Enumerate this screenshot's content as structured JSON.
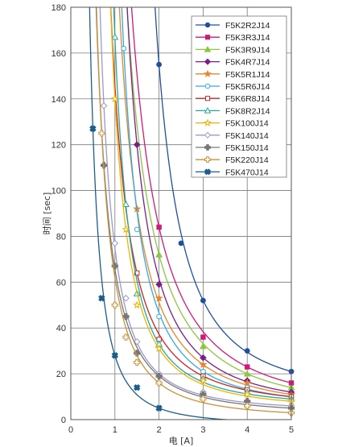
{
  "chart_data": {
    "type": "line",
    "title": "",
    "xlabel": "电 [A]",
    "ylabel": "时间 [sec]",
    "xlim": [
      0,
      5
    ],
    "ylim": [
      0,
      180
    ],
    "xticks": [
      "0",
      "1",
      "2",
      "3",
      "4",
      "5"
    ],
    "yticks": [
      "0",
      "20",
      "40",
      "60",
      "80",
      "100",
      "120",
      "140",
      "160",
      "180"
    ],
    "grid": true,
    "legend_position": "top-right",
    "series": [
      {
        "name": "F5K2R2J14",
        "color": "#1f4fa0",
        "marker": "circle-filled",
        "x": [
          2.0,
          2.5,
          3.0,
          4.0,
          5.0
        ],
        "y": [
          155,
          77,
          52,
          30,
          21
        ]
      },
      {
        "name": "F5K3R3J14",
        "color": "#d0197a",
        "marker": "square-filled",
        "x": [
          2.0,
          3.0,
          4.0,
          5.0
        ],
        "y": [
          84,
          36,
          23,
          16
        ]
      },
      {
        "name": "F5K3R9J14",
        "color": "#8dc63f",
        "marker": "triangle-filled",
        "x": [
          2.0,
          3.0,
          4.0,
          5.0
        ],
        "y": [
          72,
          32,
          20,
          14
        ]
      },
      {
        "name": "F5K4R7J14",
        "color": "#7a1f86",
        "marker": "diamond-filled",
        "x": [
          1.5,
          2.0,
          3.0,
          4.0,
          5.0
        ],
        "y": [
          120,
          59,
          27,
          17,
          12
        ]
      },
      {
        "name": "F5K5R1J14",
        "color": "#e8852b",
        "marker": "star-filled",
        "x": [
          1.5,
          2.0,
          3.0,
          4.0,
          5.0
        ],
        "y": [
          92,
          53,
          24,
          16,
          11
        ]
      },
      {
        "name": "F5K5R6J14",
        "color": "#33aadd",
        "marker": "circle-open",
        "x": [
          1.2,
          1.5,
          2.0,
          3.0,
          4.0,
          5.0
        ],
        "y": [
          162,
          83,
          45,
          21,
          14,
          10
        ]
      },
      {
        "name": "F5K6R8J14",
        "color": "#cc2222",
        "marker": "square-open",
        "x": [
          1.5,
          2.0,
          3.0,
          4.0,
          5.0
        ],
        "y": [
          64,
          35,
          19,
          13,
          10
        ]
      },
      {
        "name": "F5K8R2J14",
        "color": "#22aa99",
        "marker": "triangle-open",
        "x": [
          1.0,
          1.25,
          1.5,
          2.0,
          3.0,
          4.0,
          5.0
        ],
        "y": [
          167,
          94,
          55,
          33,
          18,
          12,
          9
        ]
      },
      {
        "name": "F5K100J14",
        "color": "#f0b400",
        "marker": "star-open",
        "x": [
          1.0,
          1.25,
          1.5,
          2.0,
          3.0,
          4.0,
          5.0
        ],
        "y": [
          140,
          83,
          50,
          31,
          17,
          11,
          8
        ]
      },
      {
        "name": "F5K140J14",
        "color": "#9999cc",
        "marker": "diamond-open",
        "x": [
          0.75,
          1.0,
          1.25,
          1.5,
          2.0,
          3.0,
          4.0,
          5.0
        ],
        "y": [
          137,
          77,
          53,
          34,
          20,
          12,
          8,
          6
        ]
      },
      {
        "name": "F5K150J14",
        "color": "#777777",
        "marker": "cross-filled",
        "x": [
          0.75,
          1.0,
          1.25,
          1.5,
          2.0,
          3.0,
          4.0,
          5.0
        ],
        "y": [
          111,
          67,
          45,
          29,
          19,
          11,
          8,
          5
        ]
      },
      {
        "name": "F5K220J14",
        "color": "#c8923a",
        "marker": "cross-open",
        "x": [
          0.7,
          1.0,
          1.25,
          1.5,
          2.0,
          3.0,
          4.0,
          5.0
        ],
        "y": [
          125,
          50,
          36,
          25,
          16,
          9,
          6,
          3
        ]
      },
      {
        "name": "F5K470J14",
        "color": "#1a5d8f",
        "marker": "x-filled",
        "x": [
          0.5,
          0.7,
          1.0,
          1.5,
          2.0
        ],
        "y": [
          127,
          53,
          28,
          14,
          5
        ]
      }
    ]
  }
}
